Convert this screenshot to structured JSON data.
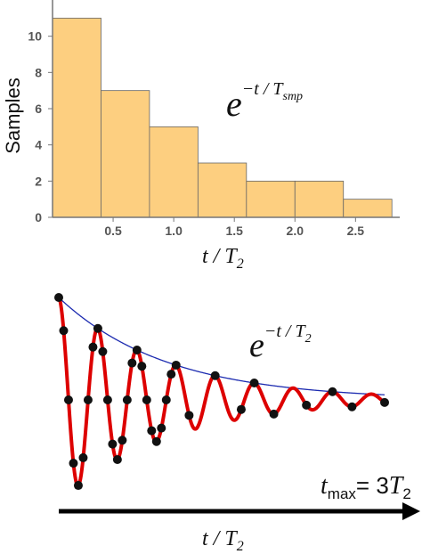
{
  "chart_data": [
    {
      "type": "bar",
      "bin_edges": [
        0,
        0.4,
        0.8,
        1.2,
        1.6,
        2.0,
        2.4,
        2.8
      ],
      "values": [
        11,
        7,
        5,
        3,
        2,
        2,
        1
      ],
      "xticks": [
        0.5,
        1.0,
        1.5,
        2.0,
        2.5
      ],
      "xtick_labels": [
        "0.5",
        "1.0",
        "1.5",
        "2.0",
        "2.5"
      ],
      "yticks": [
        0,
        2,
        4,
        6,
        8,
        10
      ],
      "ytick_labels": [
        "0",
        "2",
        "4",
        "6",
        "8",
        "10"
      ],
      "xlim": [
        0,
        2.85
      ],
      "ylim": [
        0,
        12
      ],
      "xlabel": "t / T",
      "xlabel_sub": "2",
      "ylabel": "Samples",
      "annotation": {
        "base": "e",
        "exponent": "−t / T",
        "exponent_sub": "smp"
      },
      "bar_color": "#fdcf80",
      "bar_edge_color": "#666666"
    },
    {
      "type": "line",
      "description_series": [
        {
          "name": "",
          "kind": "envelope",
          "function": "exp(-t)",
          "color": "#1c2bb0"
        },
        {
          "name": "",
          "kind": "damped-oscillation",
          "function": "exp(-t)*cos(2*pi*t/0.36)",
          "color": "#dd0000"
        }
      ],
      "t_range": [
        0,
        3
      ],
      "sample_points_t": [
        0,
        0.045,
        0.09,
        0.135,
        0.18,
        0.225,
        0.27,
        0.315,
        0.36,
        0.405,
        0.45,
        0.495,
        0.54,
        0.585,
        0.63,
        0.675,
        0.72,
        0.765,
        0.81,
        0.855,
        0.9,
        0.945,
        0.99,
        1.035,
        1.08,
        1.2,
        1.44,
        1.68,
        1.8,
        1.98,
        2.28,
        2.52,
        2.7,
        3.0
      ],
      "sample_color": "#111111",
      "xlabel": "t / T",
      "xlabel_sub": "2",
      "annotation": {
        "base": "e",
        "exponent": "−t / T",
        "exponent_sub": "2"
      },
      "tmax_label": {
        "t": "t",
        "sub": "max",
        "eq": "= 3",
        "T": "T",
        "T_sub": "2"
      },
      "arrow_color": "#000000"
    }
  ]
}
